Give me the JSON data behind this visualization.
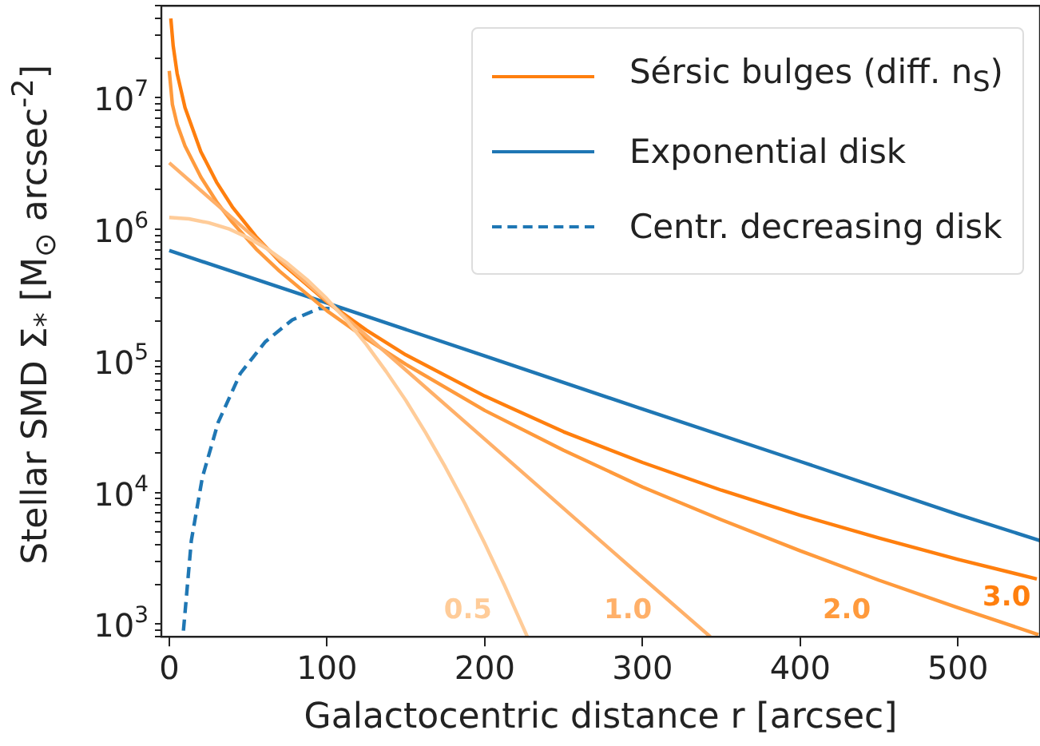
{
  "chart_data": {
    "type": "line",
    "xlabel": "Galactocentric distance r [arcsec]",
    "ylabel": "Stellar SMD Σ$_{*}$ [M$_{⊙}$ arcsec$^{-2}$]",
    "xlim": [
      -5,
      552
    ],
    "xticks": [
      0,
      100,
      200,
      300,
      400,
      500
    ],
    "ylim": [
      800,
      50000000
    ],
    "log": "y",
    "grid": false,
    "legend": "top right",
    "yticks": [
      {
        "value": 800,
        "label": null
      },
      {
        "value": 900,
        "label": null
      },
      {
        "value": 1000,
        "label": "10$^{3}$"
      },
      {
        "value": 2000,
        "label": null
      },
      {
        "value": 3000,
        "label": null
      },
      {
        "value": 4000,
        "label": null
      },
      {
        "value": 5000,
        "label": null
      },
      {
        "value": 6000,
        "label": null
      },
      {
        "value": 7000,
        "label": null
      },
      {
        "value": 8000,
        "label": null
      },
      {
        "value": 9000,
        "label": null
      },
      {
        "value": 10000,
        "label": "10$^{4}$"
      },
      {
        "value": 20000,
        "label": null
      },
      {
        "value": 30000,
        "label": null
      },
      {
        "value": 40000,
        "label": null
      },
      {
        "value": 50000,
        "label": null
      },
      {
        "value": 60000,
        "label": null
      },
      {
        "value": 70000,
        "label": null
      },
      {
        "value": 80000,
        "label": null
      },
      {
        "value": 90000,
        "label": null
      },
      {
        "value": 100000,
        "label": "10$^{5}$"
      },
      {
        "value": 200000,
        "label": null
      },
      {
        "value": 300000,
        "label": null
      },
      {
        "value": 400000,
        "label": null
      },
      {
        "value": 500000,
        "label": null
      },
      {
        "value": 600000,
        "label": null
      },
      {
        "value": 700000,
        "label": null
      },
      {
        "value": 800000,
        "label": null
      },
      {
        "value": 900000,
        "label": null
      },
      {
        "value": 1000000,
        "label": "10$^{6}$"
      },
      {
        "value": 2000000,
        "label": null
      },
      {
        "value": 3000000,
        "label": null
      },
      {
        "value": 4000000,
        "label": null
      },
      {
        "value": 5000000,
        "label": null
      },
      {
        "value": 6000000,
        "label": null
      },
      {
        "value": 7000000,
        "label": null
      },
      {
        "value": 8000000,
        "label": null
      },
      {
        "value": 9000000,
        "label": null
      },
      {
        "value": 10000000,
        "label": "10$^{7}$"
      },
      {
        "value": 20000000,
        "label": null
      },
      {
        "value": 30000000,
        "label": null
      },
      {
        "value": 40000000,
        "label": null
      },
      {
        "value": 50000000,
        "label": null
      }
    ],
    "series": [
      {
        "color": "#ffcc99",
        "line_style": "solid",
        "x": [
          0,
          12.5,
          25,
          37.5,
          50,
          62.5,
          75,
          87.5,
          100,
          112.5,
          125,
          137.5,
          150,
          162.5,
          175,
          187.5,
          200,
          212.5,
          227
        ],
        "values": [
          1230000,
          1200000,
          1120000,
          1010000,
          860000,
          705000,
          550000,
          413000,
          296000,
          203000,
          133000,
          83000,
          50000,
          28500,
          15600,
          8200,
          4100,
          1970,
          800
        ]
      },
      {
        "color": "#ffb069",
        "line_style": "solid",
        "x": [
          0,
          100,
          200,
          300,
          343
        ],
        "values": [
          3200000,
          285000,
          25400,
          2250,
          800
        ]
      },
      {
        "color": "#ff9a3c",
        "line_style": "solid",
        "x": [
          0,
          2,
          5,
          10,
          20,
          30,
          40,
          55,
          70,
          100,
          125,
          150,
          200,
          250,
          300,
          350,
          400,
          450,
          500,
          551
        ],
        "values": [
          16000000,
          8900000,
          6300000,
          4300000,
          2500000,
          1620000,
          1130000,
          710000,
          480000,
          240000,
          147000,
          94000,
          42000,
          20900,
          11000,
          6200,
          3600,
          2150,
          1330,
          830
        ]
      },
      {
        "name": "Sérsic bulges (diff. n$_{S}$)",
        "color": "#ff7f0e",
        "line_style": "solid",
        "x": [
          1,
          2.5,
          5,
          10,
          20,
          30,
          40,
          55,
          70,
          100,
          125,
          150,
          200,
          250,
          300,
          350,
          400,
          450,
          500,
          550
        ],
        "values": [
          40000000,
          24800000,
          15300000,
          8400000,
          3900000,
          2280000,
          1480000,
          880000,
          570000,
          280000,
          171000,
          111000,
          54000,
          28900,
          16900,
          10400,
          6700,
          4500,
          3100,
          2200
        ]
      },
      {
        "name": "Exponential disk",
        "color": "#1f77b4",
        "line_style": "solid",
        "x": [
          0,
          100,
          200,
          300,
          400,
          500,
          552
        ],
        "values": [
          690000,
          275000,
          109000,
          43000,
          17200,
          6800,
          4300
        ]
      },
      {
        "name": "Centr. decreasing disk",
        "color": "#1f77b4",
        "line_style": "dashed",
        "x": [
          9,
          14,
          21,
          31,
          45,
          61,
          78,
          95,
          110
        ],
        "values": [
          890,
          4300,
          13000,
          34000,
          80000,
          140000,
          205000,
          250000,
          250000
        ]
      }
    ],
    "annotations": [
      "0.5",
      "1.0",
      "2.0",
      "3.0"
    ]
  }
}
